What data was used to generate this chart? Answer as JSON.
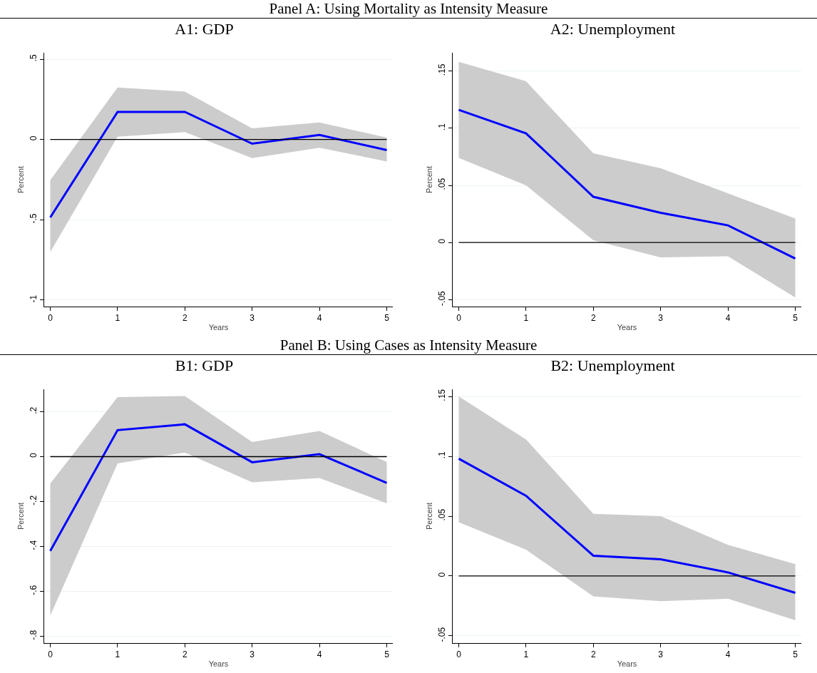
{
  "chart_data": [
    {
      "type": "line",
      "title": "A1: GDP",
      "annotations": [
        "Panel A: Using Mortality as Intensity Measure"
      ],
      "xlabel": "Years",
      "ylabel": "Percent",
      "x": [
        0,
        1,
        2,
        3,
        4,
        5
      ],
      "series": [
        {
          "color": "#0000ff",
          "values": [
            -0.485,
            0.172,
            0.172,
            -0.026,
            0.028,
            -0.066
          ],
          "lower": [
            -0.7,
            0.017,
            0.046,
            -0.116,
            -0.051,
            -0.137
          ],
          "upper": [
            -0.253,
            0.324,
            0.298,
            0.07,
            0.106,
            0.012
          ]
        }
      ],
      "xlim": [
        -0.09,
        5.09
      ],
      "xticks": [
        0,
        1,
        2,
        3,
        4,
        5
      ],
      "ylim": [
        -1.04,
        0.54
      ],
      "yticks": [
        {
          "value": -1,
          "label": "-1"
        },
        {
          "value": -0.5,
          "label": "-.5"
        },
        {
          "value": 0,
          "label": "0"
        },
        {
          "value": 0.5,
          "label": ".5"
        }
      ],
      "grid": "y",
      "ref_lines": [
        {
          "axis": "y",
          "value": 0,
          "color": "#000000"
        }
      ]
    },
    {
      "type": "line",
      "title": "A2: Unemployment",
      "xlabel": "Years",
      "ylabel": "Percent",
      "x": [
        0,
        1,
        2,
        3,
        4,
        5
      ],
      "series": [
        {
          "color": "#0000ff",
          "values": [
            0.116,
            0.0955,
            0.04,
            0.026,
            0.015,
            -0.014
          ],
          "lower": [
            0.074,
            0.05,
            0.002,
            -0.013,
            -0.012,
            -0.048
          ],
          "upper": [
            0.158,
            0.141,
            0.078,
            0.065,
            0.043,
            0.021
          ]
        }
      ],
      "xlim": [
        -0.09,
        5.09
      ],
      "xticks": [
        0,
        1,
        2,
        3,
        4,
        5
      ],
      "ylim": [
        -0.056,
        0.166
      ],
      "yticks": [
        {
          "value": -0.05,
          "label": "-.05"
        },
        {
          "value": 0,
          "label": "0"
        },
        {
          "value": 0.05,
          "label": ".05"
        },
        {
          "value": 0.1,
          "label": ".1"
        },
        {
          "value": 0.15,
          "label": ".15"
        }
      ],
      "grid": "y",
      "ref_lines": [
        {
          "axis": "y",
          "value": 0,
          "color": "#000000"
        }
      ]
    },
    {
      "type": "line",
      "title": "B1: GDP",
      "annotations": [
        "Panel B: Using Cases as Intensity Measure"
      ],
      "xlabel": "Years",
      "ylabel": "Percent",
      "x": [
        0,
        1,
        2,
        3,
        4,
        5
      ],
      "series": [
        {
          "color": "#0000ff",
          "values": [
            -0.42,
            0.118,
            0.144,
            -0.025,
            0.011,
            -0.117
          ],
          "lower": [
            -0.708,
            -0.03,
            0.018,
            -0.114,
            -0.095,
            -0.208
          ],
          "upper": [
            -0.12,
            0.265,
            0.27,
            0.065,
            0.114,
            -0.024
          ]
        }
      ],
      "xlim": [
        -0.09,
        5.09
      ],
      "xticks": [
        0,
        1,
        2,
        3,
        4,
        5
      ],
      "ylim": [
        -0.83,
        0.3
      ],
      "yticks": [
        {
          "value": -0.8,
          "label": "-.8"
        },
        {
          "value": -0.6,
          "label": "-.6"
        },
        {
          "value": -0.4,
          "label": "-.4"
        },
        {
          "value": -0.2,
          "label": "-.2"
        },
        {
          "value": 0,
          "label": "0"
        },
        {
          "value": 0.2,
          "label": ".2"
        }
      ],
      "grid": "y",
      "ref_lines": [
        {
          "axis": "y",
          "value": 0,
          "color": "#000000"
        }
      ]
    },
    {
      "type": "line",
      "title": "B2: Unemployment",
      "xlabel": "Years",
      "ylabel": "Percent",
      "x": [
        0,
        1,
        2,
        3,
        4,
        5
      ],
      "series": [
        {
          "color": "#0000ff",
          "values": [
            0.098,
            0.067,
            0.017,
            0.014,
            0.003,
            -0.014
          ],
          "lower": [
            0.045,
            0.022,
            -0.017,
            -0.021,
            -0.019,
            -0.037
          ],
          "upper": [
            0.15,
            0.114,
            0.052,
            0.05,
            0.026,
            0.01
          ]
        }
      ],
      "xlim": [
        -0.09,
        5.09
      ],
      "xticks": [
        0,
        1,
        2,
        3,
        4,
        5
      ],
      "ylim": [
        -0.056,
        0.156
      ],
      "yticks": [
        {
          "value": -0.05,
          "label": "-.05"
        },
        {
          "value": 0,
          "label": "0"
        },
        {
          "value": 0.05,
          "label": ".05"
        },
        {
          "value": 0.1,
          "label": ".1"
        },
        {
          "value": 0.15,
          "label": ".15"
        }
      ],
      "grid": "y",
      "ref_lines": [
        {
          "axis": "y",
          "value": 0,
          "color": "#000000"
        }
      ]
    }
  ]
}
